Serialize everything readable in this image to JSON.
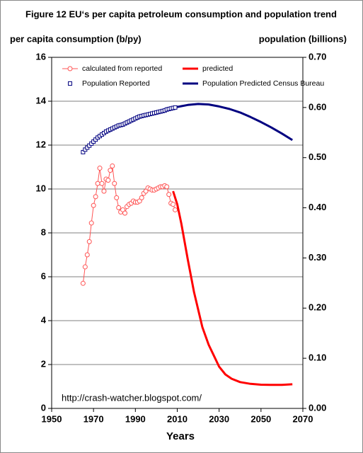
{
  "chart_data": {
    "type": "line",
    "title": "Figure 12 EU‘s per capita petroleum consumption and population trend",
    "ylabel": "per capita consumption (b/py)",
    "y2label": "population (billions)",
    "xlabel": "Years",
    "annotation": "http://crash-watcher.blogspot.com/",
    "xlim": [
      1950,
      2070
    ],
    "xticks": [
      1950,
      1970,
      1990,
      2010,
      2030,
      2050,
      2070
    ],
    "ylim": [
      0,
      16
    ],
    "yticks": [
      0,
      2,
      4,
      6,
      8,
      10,
      12,
      14,
      16
    ],
    "y2lim": [
      0,
      0.7
    ],
    "y2ticks": [
      {
        "value": 0,
        "label": "0.00"
      },
      {
        "value": 0.1,
        "label": "0.10"
      },
      {
        "value": 0.2,
        "label": "0.20"
      },
      {
        "value": 0.3,
        "label": "0.30"
      },
      {
        "value": 0.4,
        "label": "0.40"
      },
      {
        "value": 0.5,
        "label": "0.50"
      },
      {
        "value": 0.6,
        "label": "0.60"
      },
      {
        "value": 0.7,
        "label": "0.70"
      }
    ],
    "grid": true,
    "legend": "top",
    "series": [
      {
        "name": "calculated from reported",
        "color": "#ff5555",
        "marker": "circle",
        "line": "thin",
        "x": [
          1965,
          1966,
          1967,
          1968,
          1969,
          1970,
          1971,
          1972,
          1973,
          1974,
          1975,
          1976,
          1977,
          1978,
          1979,
          1980,
          1981,
          1982,
          1983,
          1984,
          1985,
          1986,
          1987,
          1988,
          1989,
          1990,
          1991,
          1992,
          1993,
          1994,
          1995,
          1996,
          1997,
          1998,
          1999,
          2000,
          2001,
          2002,
          2003,
          2004,
          2005,
          2006,
          2007,
          2008,
          2009
        ],
        "values": [
          5.7,
          6.45,
          7.0,
          7.6,
          8.45,
          9.25,
          9.65,
          10.25,
          10.95,
          10.25,
          9.9,
          10.45,
          10.4,
          10.85,
          11.05,
          10.25,
          9.6,
          9.15,
          8.95,
          9.05,
          8.9,
          9.2,
          9.3,
          9.35,
          9.45,
          9.4,
          9.4,
          9.45,
          9.6,
          9.8,
          9.9,
          10.05,
          10.0,
          9.95,
          9.95,
          10.0,
          10.05,
          10.1,
          10.1,
          10.15,
          10.1,
          9.75,
          9.35,
          9.3,
          9.05
        ]
      },
      {
        "name": "predicted",
        "color": "#ff0000",
        "line": "thick",
        "x": [
          2008,
          2010,
          2012,
          2015,
          2018,
          2020,
          2022,
          2025,
          2028,
          2030,
          2033,
          2036,
          2040,
          2045,
          2050,
          2055,
          2060,
          2065
        ],
        "values": [
          9.9,
          9.3,
          8.4,
          6.8,
          5.3,
          4.5,
          3.7,
          2.9,
          2.3,
          1.9,
          1.55,
          1.35,
          1.2,
          1.12,
          1.08,
          1.07,
          1.07,
          1.1
        ]
      },
      {
        "name": "Population Reported",
        "color": "#000080",
        "marker": "square",
        "axis": "y2",
        "x": [
          1965,
          1966,
          1967,
          1968,
          1969,
          1970,
          1971,
          1972,
          1973,
          1974,
          1975,
          1976,
          1977,
          1978,
          1979,
          1980,
          1981,
          1982,
          1983,
          1984,
          1985,
          1986,
          1987,
          1988,
          1989,
          1990,
          1991,
          1992,
          1993,
          1994,
          1995,
          1996,
          1997,
          1998,
          1999,
          2000,
          2001,
          2002,
          2003,
          2004,
          2005,
          2006,
          2007,
          2008,
          2009
        ],
        "values": [
          0.511,
          0.516,
          0.52,
          0.524,
          0.528,
          0.532,
          0.536,
          0.54,
          0.543,
          0.546,
          0.549,
          0.552,
          0.554,
          0.556,
          0.558,
          0.56,
          0.562,
          0.564,
          0.565,
          0.566,
          0.568,
          0.57,
          0.572,
          0.574,
          0.576,
          0.578,
          0.58,
          0.582,
          0.583,
          0.584,
          0.585,
          0.586,
          0.587,
          0.588,
          0.589,
          0.59,
          0.591,
          0.592,
          0.593,
          0.594,
          0.596,
          0.597,
          0.598,
          0.599,
          0.6
        ]
      },
      {
        "name": "Population Predicted Census Bureau",
        "color": "#000080",
        "line": "thick",
        "axis": "y2",
        "x": [
          2010,
          2015,
          2020,
          2025,
          2030,
          2035,
          2040,
          2045,
          2050,
          2055,
          2060,
          2065
        ],
        "values": [
          0.601,
          0.605,
          0.607,
          0.606,
          0.602,
          0.597,
          0.59,
          0.581,
          0.571,
          0.56,
          0.548,
          0.535
        ]
      }
    ]
  }
}
